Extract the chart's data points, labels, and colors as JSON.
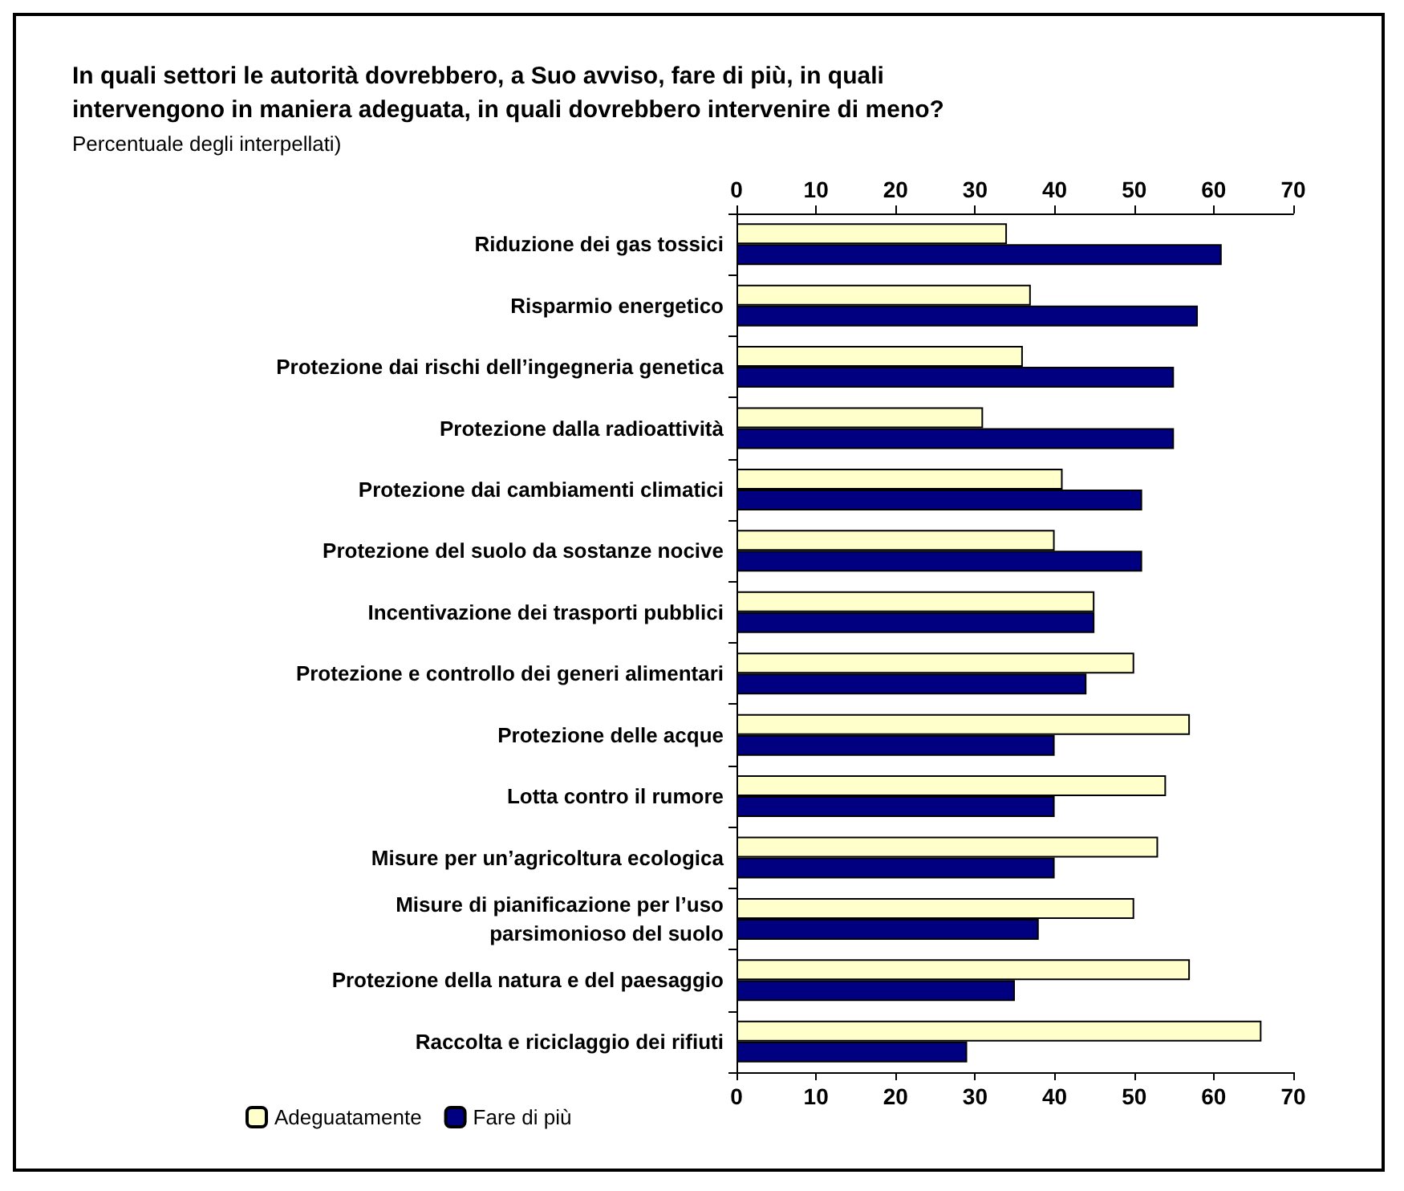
{
  "chart_data": {
    "type": "bar",
    "orientation": "horizontal",
    "title": "In quali settori le autorità dovrebbero, a Suo avviso, fare di più, in quali\nintervengono in maniera adeguata, in quali dovrebbero intervenire di meno?",
    "subtitle": "Percentuale degli interpellati)",
    "categories": [
      "Riduzione dei gas tossici",
      "Risparmio energetico",
      "Protezione dai rischi dell’ingegneria genetica",
      "Protezione dalla radioattività",
      "Protezione dai cambiamenti climatici",
      "Protezione del suolo da sostanze nocive",
      "Incentivazione dei trasporti pubblici",
      "Protezione e controllo dei generi alimentari",
      "Protezione delle acque",
      "Lotta contro il rumore",
      "Misure per un’agricoltura ecologica",
      "Misure di pianificazione per l’uso\nparsimonioso del suolo",
      "Protezione della natura e del paesaggio",
      "Raccolta e riciclaggio dei rifiuti"
    ],
    "series": [
      {
        "name": "Adeguatamente",
        "color": "#ffffcc",
        "values": [
          34,
          37,
          36,
          31,
          41,
          40,
          45,
          50,
          57,
          54,
          53,
          50,
          57,
          66
        ]
      },
      {
        "name": "Fare di più",
        "color": "#000080",
        "values": [
          61,
          58,
          55,
          55,
          51,
          51,
          45,
          44,
          40,
          40,
          40,
          38,
          35,
          29
        ]
      }
    ],
    "xlim": [
      0,
      70
    ],
    "xticks": [
      0,
      10,
      20,
      30,
      40,
      50,
      60,
      70
    ],
    "x2lim": [
      0,
      70
    ],
    "x2ticks": [
      0,
      10,
      20,
      30,
      40,
      50,
      60,
      70
    ],
    "grid": false,
    "legend": "bottom left"
  }
}
